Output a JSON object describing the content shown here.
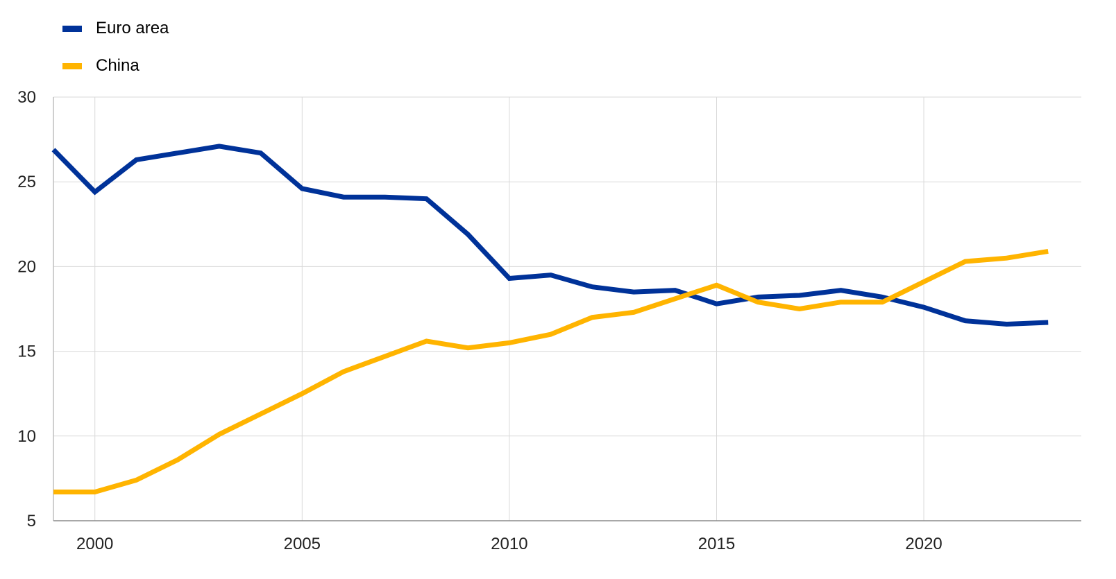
{
  "chart_data": {
    "type": "line",
    "title": "",
    "xlabel": "",
    "ylabel": "",
    "xlim": [
      1999,
      2023.8
    ],
    "ylim": [
      5,
      30
    ],
    "x_ticks": [
      2000,
      2005,
      2010,
      2015,
      2020
    ],
    "y_ticks": [
      5,
      10,
      15,
      20,
      25,
      30
    ],
    "grid": true,
    "legend_position": "top-left",
    "series": [
      {
        "name": "Euro area",
        "color": "#003299",
        "x": [
          1999,
          2000,
          2001,
          2002,
          2003,
          2004,
          2005,
          2006,
          2007,
          2008,
          2009,
          2010,
          2011,
          2012,
          2013,
          2014,
          2015,
          2016,
          2017,
          2018,
          2019,
          2020,
          2021,
          2022,
          2023
        ],
        "values": [
          26.9,
          24.4,
          26.3,
          26.7,
          27.1,
          26.7,
          24.6,
          24.1,
          24.1,
          24.0,
          21.9,
          19.3,
          19.5,
          18.8,
          18.5,
          18.6,
          17.8,
          18.2,
          18.3,
          18.6,
          18.2,
          17.6,
          16.8,
          16.6,
          16.7
        ]
      },
      {
        "name": "China",
        "color": "#FFB400",
        "x": [
          1999,
          2000,
          2001,
          2002,
          2003,
          2004,
          2005,
          2006,
          2007,
          2008,
          2009,
          2010,
          2011,
          2012,
          2013,
          2014,
          2015,
          2016,
          2017,
          2018,
          2019,
          2020,
          2021,
          2022,
          2023
        ],
        "values": [
          6.7,
          6.7,
          7.4,
          8.6,
          10.1,
          11.3,
          12.5,
          13.8,
          14.7,
          15.6,
          15.2,
          15.5,
          16.0,
          17.0,
          17.3,
          18.1,
          18.9,
          17.9,
          17.5,
          17.9,
          17.9,
          19.1,
          20.3,
          20.5,
          20.9
        ]
      }
    ]
  }
}
